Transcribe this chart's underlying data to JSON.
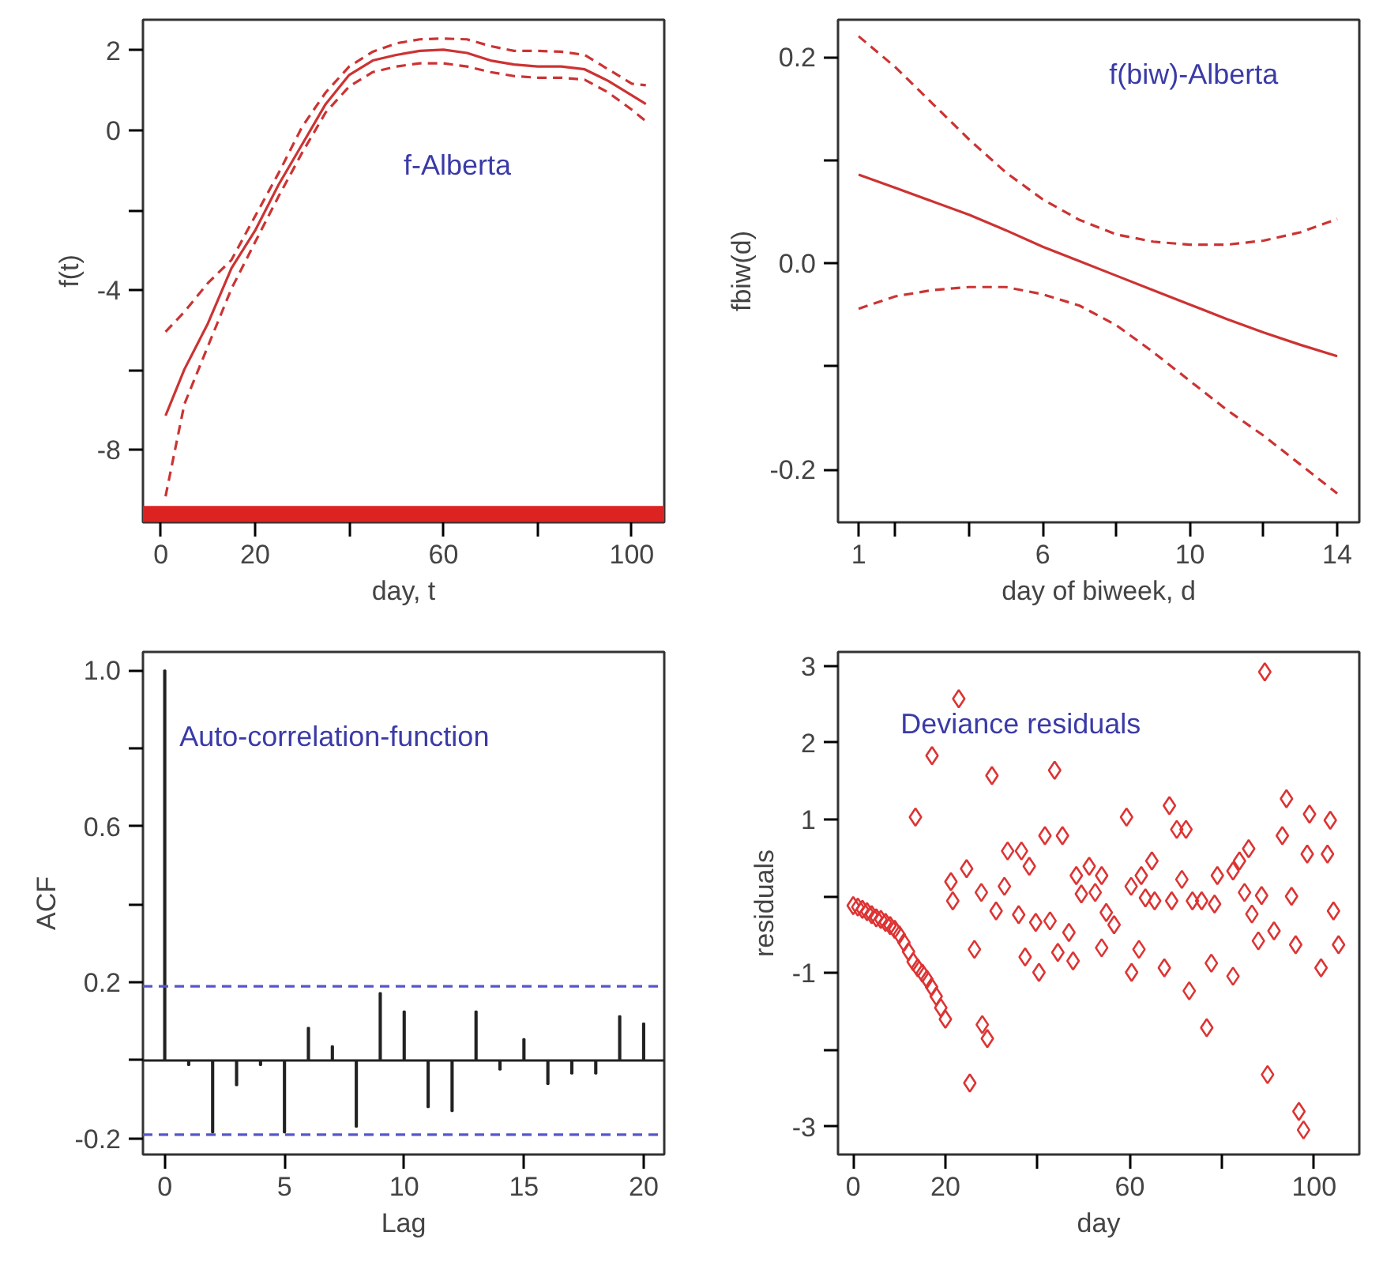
{
  "chart_data": [
    {
      "type": "line",
      "xlabel": "day, t",
      "ylabel": "f(t)",
      "annotations": [
        "f-Alberta"
      ],
      "grid": false,
      "xlim": [
        -3.8,
        106.9
      ],
      "ylim": [
        -9.81,
        2.77
      ],
      "xticks": [
        0,
        20,
        {
          "value": 40,
          "label": null
        },
        60,
        {
          "value": 80,
          "label": null
        },
        100
      ],
      "yticks": [
        2,
        0,
        {
          "value": -2,
          "label": null
        },
        -4,
        {
          "value": -6,
          "label": null
        },
        -8
      ],
      "x": [
        1,
        5,
        10,
        15,
        20,
        25,
        30,
        35,
        40,
        45,
        50,
        55,
        60,
        65,
        70,
        75,
        80,
        85,
        90,
        95,
        100,
        103
      ],
      "series": [
        {
          "color": "#cc3333",
          "line_style": "solid",
          "values": [
            -7.14,
            -5.98,
            -4.83,
            -3.45,
            -2.51,
            -1.36,
            -0.35,
            0.66,
            1.39,
            1.75,
            1.89,
            1.99,
            2.02,
            1.94,
            1.75,
            1.65,
            1.6,
            1.6,
            1.53,
            1.24,
            0.88,
            0.66
          ]
        },
        {
          "color": "#cc3333",
          "line_style": "dashed",
          "values": [
            -5.04,
            -4.54,
            -3.82,
            -3.24,
            -2.15,
            -1.07,
            0.09,
            0.95,
            1.6,
            1.97,
            2.18,
            2.28,
            2.3,
            2.28,
            2.11,
            1.99,
            1.99,
            1.97,
            1.89,
            1.53,
            1.17,
            1.13
          ]
        },
        {
          "color": "#cc3333",
          "line_style": "dashed",
          "x": [
            1,
            3,
            5,
            10,
            15,
            20,
            25,
            30,
            35,
            40,
            45,
            50,
            55,
            60,
            65,
            70,
            75,
            80,
            85,
            90,
            95,
            100,
            103
          ],
          "values": [
            -9.16,
            -8.0,
            -6.85,
            -5.4,
            -3.96,
            -2.8,
            -1.65,
            -0.56,
            0.45,
            1.1,
            1.46,
            1.6,
            1.68,
            1.68,
            1.6,
            1.46,
            1.36,
            1.32,
            1.32,
            1.27,
            0.95,
            0.52,
            0.23
          ]
        }
      ],
      "bands": [
        {
          "axis": "y",
          "from": -9.8,
          "to": -9.4,
          "color": "#dd2222"
        }
      ]
    },
    {
      "type": "line",
      "xlabel": "day of biweek, d",
      "ylabel": "fbiw(d)",
      "annotations": [
        "f(biw)-Alberta"
      ],
      "grid": false,
      "xlim": [
        0.44,
        14.6
      ],
      "ylim": [
        -0.251,
        0.236
      ],
      "xticks": [
        1,
        {
          "value": 2,
          "label": null
        },
        {
          "value": 4,
          "label": null
        },
        6,
        {
          "value": 8,
          "label": null
        },
        10,
        {
          "value": 12,
          "label": null
        },
        14
      ],
      "yticks": [
        0.2,
        {
          "value": 0.1,
          "label": null
        },
        {
          "value": 0,
          "label": "0.0"
        },
        {
          "value": -0.1,
          "label": null
        },
        -0.2
      ],
      "x": [
        1,
        2,
        3,
        4,
        5,
        6,
        7,
        8,
        9,
        10,
        11,
        12,
        13,
        14
      ],
      "series": [
        {
          "color": "#cc3333",
          "line_style": "solid",
          "values": [
            0.086,
            0.073,
            0.06,
            0.047,
            0.032,
            0.016,
            0.002,
            -0.012,
            -0.026,
            -0.04,
            -0.054,
            -0.067,
            -0.079,
            -0.09
          ]
        },
        {
          "color": "#cc3333",
          "line_style": "dashed",
          "values": [
            0.22,
            0.19,
            0.155,
            0.12,
            0.088,
            0.062,
            0.042,
            0.028,
            0.021,
            0.018,
            0.018,
            0.022,
            0.03,
            0.043
          ]
        },
        {
          "color": "#cc3333",
          "line_style": "dashed",
          "values": [
            -0.044,
            -0.032,
            -0.026,
            -0.023,
            -0.023,
            -0.03,
            -0.041,
            -0.06,
            -0.086,
            -0.114,
            -0.142,
            -0.167,
            -0.195,
            -0.223
          ]
        }
      ]
    },
    {
      "type": "bar",
      "xlabel": "Lag",
      "ylabel": "ACF",
      "annotations": [
        "Auto-correlation-function"
      ],
      "grid": false,
      "xlim": [
        -0.91,
        20.86
      ],
      "ylim": [
        -0.241,
        1.047
      ],
      "xticks": [
        0,
        5,
        10,
        15,
        20
      ],
      "yticks": [
        {
          "value": 1.0,
          "label": "1.0"
        },
        {
          "value": 0.8,
          "label": null
        },
        0.6,
        {
          "value": 0.4,
          "label": null
        },
        0.2,
        {
          "value": 0,
          "label": null
        },
        -0.2
      ],
      "x": [
        0,
        1,
        2,
        3,
        4,
        5,
        6,
        7,
        8,
        9,
        10,
        11,
        12,
        13,
        14,
        15,
        16,
        17,
        18,
        19,
        20
      ],
      "series": [
        {
          "color": "#222222",
          "values": [
            1.0,
            -0.012,
            -0.185,
            -0.064,
            -0.012,
            -0.185,
            0.084,
            0.037,
            -0.17,
            0.173,
            0.126,
            -0.12,
            -0.13,
            0.126,
            -0.024,
            0.055,
            -0.061,
            -0.034,
            -0.034,
            0.114,
            0.095
          ]
        }
      ],
      "ref_lines": [
        {
          "axis": "y",
          "value": 0,
          "color": "#222222",
          "line_style": "solid"
        },
        {
          "axis": "y",
          "value": 0.19,
          "color": "#5555cc",
          "line_style": "dashed"
        },
        {
          "axis": "y",
          "value": -0.19,
          "color": "#5555cc",
          "line_style": "dashed"
        }
      ]
    },
    {
      "type": "scatter",
      "xlabel": "day",
      "ylabel": "residuals",
      "annotations": [
        "Deviance residuals"
      ],
      "grid": false,
      "marker": "diamond",
      "xlim": [
        -3.3,
        109.8
      ],
      "ylim": [
        -3.36,
        3.18
      ],
      "xticks": [
        0,
        20,
        {
          "value": 40,
          "label": null
        },
        60,
        {
          "value": 80,
          "label": null
        },
        100
      ],
      "yticks": [
        3,
        2,
        1,
        {
          "value": 0,
          "label": null
        },
        -1,
        {
          "value": -2,
          "label": null
        },
        -3
      ],
      "series": [
        {
          "color": "#dd3333",
          "x": [
            0,
            1,
            2,
            3,
            4,
            5,
            6,
            7,
            8,
            9,
            10,
            11,
            12,
            13,
            14,
            15,
            16,
            17,
            18,
            19,
            20,
            22.9,
            13.5,
            17.1,
            30.1,
            43.7,
            21.2,
            24.6,
            21.6,
            26.3,
            28.0,
            29.1,
            25.3,
            27.8,
            31.0,
            32.8,
            33.5,
            36.5,
            38.2,
            35.9,
            39.6,
            42.7,
            41.6,
            45.4,
            46.8,
            44.4,
            47.7,
            37.3,
            40.3,
            48.4,
            51.2,
            53.9,
            49.5,
            52.5,
            54.9,
            56.6,
            53.9,
            59.3,
            60.3,
            62.5,
            64.8,
            63.4,
            65.4,
            62.0,
            60.4,
            67.5,
            68.6,
            70.2,
            72.2,
            71.3,
            69.1,
            73.6,
            75.6,
            78.4,
            72.9,
            76.7,
            77.7,
            79.0,
            82.4,
            83.8,
            85.8,
            82.4,
            84.9,
            86.5,
            87.9,
            88.6,
            91.3,
            96.0,
            95.1,
            93.1,
            94.0,
            89.3,
            89.9,
            96.7,
            97.7,
            99.0,
            103.5,
            98.5,
            102.9,
            104.2,
            105.3,
            101.5
          ],
          "values": [
            -0.12,
            -0.14,
            -0.17,
            -0.2,
            -0.24,
            -0.28,
            -0.3,
            -0.34,
            -0.38,
            -0.43,
            -0.5,
            -0.6,
            -0.72,
            -0.85,
            -0.93,
            -1.0,
            -1.08,
            -1.18,
            -1.3,
            -1.45,
            -1.6,
            2.57,
            1.03,
            1.83,
            1.57,
            1.64,
            0.19,
            0.36,
            -0.06,
            -0.69,
            -1.67,
            -1.85,
            -2.43,
            0.05,
            -0.19,
            0.13,
            0.59,
            0.59,
            0.39,
            -0.24,
            -0.34,
            -0.32,
            0.79,
            0.79,
            -0.47,
            -0.73,
            -0.84,
            -0.79,
            -0.99,
            0.27,
            0.39,
            0.27,
            0.03,
            0.05,
            -0.21,
            -0.37,
            -0.67,
            1.03,
            0.13,
            0.27,
            0.46,
            -0.02,
            -0.06,
            -0.69,
            -0.99,
            -0.93,
            1.18,
            0.87,
            0.87,
            0.22,
            -0.06,
            -0.06,
            -0.06,
            -0.1,
            -1.23,
            -1.71,
            -0.87,
            0.27,
            0.33,
            0.46,
            0.62,
            -1.04,
            0.05,
            -0.23,
            -0.58,
            0.01,
            -0.45,
            -0.63,
            0.0,
            0.79,
            1.27,
            2.92,
            -2.32,
            -2.8,
            -3.04,
            1.07,
            0.99,
            0.55,
            0.55,
            -0.19,
            -0.63,
            -0.93
          ]
        }
      ]
    }
  ]
}
